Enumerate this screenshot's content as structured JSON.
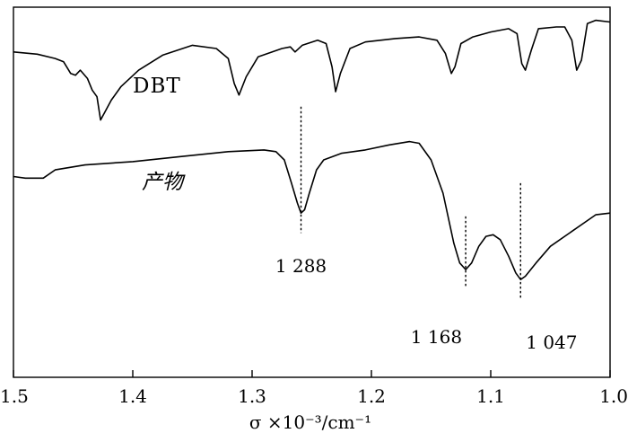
{
  "chart_data": {
    "type": "line",
    "x_axis": {
      "label": "σ ×10⁻³/cm⁻¹",
      "range": [
        1.5,
        1.0
      ],
      "reversed": true,
      "ticks": [
        1.5,
        1.4,
        1.3,
        1.2,
        1.1,
        1.0
      ],
      "tick_labels": [
        "1.5",
        "1.4",
        "1.3",
        "1.2",
        "1.1",
        "1.0"
      ]
    },
    "y_axis": {
      "label": "",
      "ticks": []
    },
    "grid": false,
    "series": [
      {
        "name": "DBT",
        "points": [
          [
            1.5,
            0.925
          ],
          [
            1.48,
            0.918
          ],
          [
            1.465,
            0.905
          ],
          [
            1.458,
            0.895
          ],
          [
            1.452,
            0.86
          ],
          [
            1.448,
            0.855
          ],
          [
            1.444,
            0.87
          ],
          [
            1.438,
            0.845
          ],
          [
            1.434,
            0.81
          ],
          [
            1.43,
            0.79
          ],
          [
            1.427,
            0.72
          ],
          [
            1.424,
            0.74
          ],
          [
            1.418,
            0.78
          ],
          [
            1.41,
            0.82
          ],
          [
            1.395,
            0.87
          ],
          [
            1.375,
            0.915
          ],
          [
            1.35,
            0.945
          ],
          [
            1.33,
            0.935
          ],
          [
            1.32,
            0.905
          ],
          [
            1.315,
            0.83
          ],
          [
            1.311,
            0.795
          ],
          [
            1.305,
            0.85
          ],
          [
            1.295,
            0.91
          ],
          [
            1.275,
            0.935
          ],
          [
            1.268,
            0.94
          ],
          [
            1.264,
            0.925
          ],
          [
            1.258,
            0.945
          ],
          [
            1.245,
            0.96
          ],
          [
            1.238,
            0.95
          ],
          [
            1.233,
            0.88
          ],
          [
            1.23,
            0.805
          ],
          [
            1.226,
            0.86
          ],
          [
            1.218,
            0.935
          ],
          [
            1.205,
            0.955
          ],
          [
            1.18,
            0.965
          ],
          [
            1.16,
            0.97
          ],
          [
            1.145,
            0.96
          ],
          [
            1.138,
            0.92
          ],
          [
            1.133,
            0.86
          ],
          [
            1.13,
            0.88
          ],
          [
            1.125,
            0.95
          ],
          [
            1.115,
            0.97
          ],
          [
            1.1,
            0.985
          ],
          [
            1.085,
            0.995
          ],
          [
            1.078,
            0.98
          ],
          [
            1.074,
            0.89
          ],
          [
            1.071,
            0.87
          ],
          [
            1.066,
            0.93
          ],
          [
            1.06,
            0.995
          ],
          [
            1.045,
            1.0
          ],
          [
            1.038,
            1.0
          ],
          [
            1.032,
            0.96
          ],
          [
            1.028,
            0.87
          ],
          [
            1.024,
            0.9
          ],
          [
            1.019,
            1.01
          ],
          [
            1.012,
            1.02
          ],
          [
            1.0,
            1.015
          ]
        ]
      },
      {
        "name": "产物",
        "points": [
          [
            1.5,
            0.55
          ],
          [
            1.49,
            0.545
          ],
          [
            1.475,
            0.545
          ],
          [
            1.465,
            0.57
          ],
          [
            1.44,
            0.585
          ],
          [
            1.4,
            0.595
          ],
          [
            1.36,
            0.61
          ],
          [
            1.32,
            0.625
          ],
          [
            1.29,
            0.63
          ],
          [
            1.28,
            0.625
          ],
          [
            1.273,
            0.6
          ],
          [
            1.267,
            0.53
          ],
          [
            1.262,
            0.47
          ],
          [
            1.259,
            0.44
          ],
          [
            1.256,
            0.45
          ],
          [
            1.252,
            0.5
          ],
          [
            1.246,
            0.57
          ],
          [
            1.24,
            0.6
          ],
          [
            1.225,
            0.62
          ],
          [
            1.205,
            0.63
          ],
          [
            1.185,
            0.645
          ],
          [
            1.168,
            0.655
          ],
          [
            1.16,
            0.65
          ],
          [
            1.15,
            0.6
          ],
          [
            1.14,
            0.5
          ],
          [
            1.131,
            0.35
          ],
          [
            1.126,
            0.29
          ],
          [
            1.121,
            0.27
          ],
          [
            1.116,
            0.29
          ],
          [
            1.11,
            0.34
          ],
          [
            1.104,
            0.37
          ],
          [
            1.098,
            0.375
          ],
          [
            1.092,
            0.36
          ],
          [
            1.085,
            0.31
          ],
          [
            1.079,
            0.26
          ],
          [
            1.075,
            0.24
          ],
          [
            1.071,
            0.25
          ],
          [
            1.062,
            0.29
          ],
          [
            1.05,
            0.34
          ],
          [
            1.03,
            0.39
          ],
          [
            1.012,
            0.435
          ],
          [
            1.0,
            0.44
          ]
        ]
      }
    ],
    "annotations": [
      {
        "x": 1.259,
        "label": "1 288"
      },
      {
        "x": 1.121,
        "label": "1 168"
      },
      {
        "x": 1.075,
        "label": "1 047"
      }
    ]
  }
}
